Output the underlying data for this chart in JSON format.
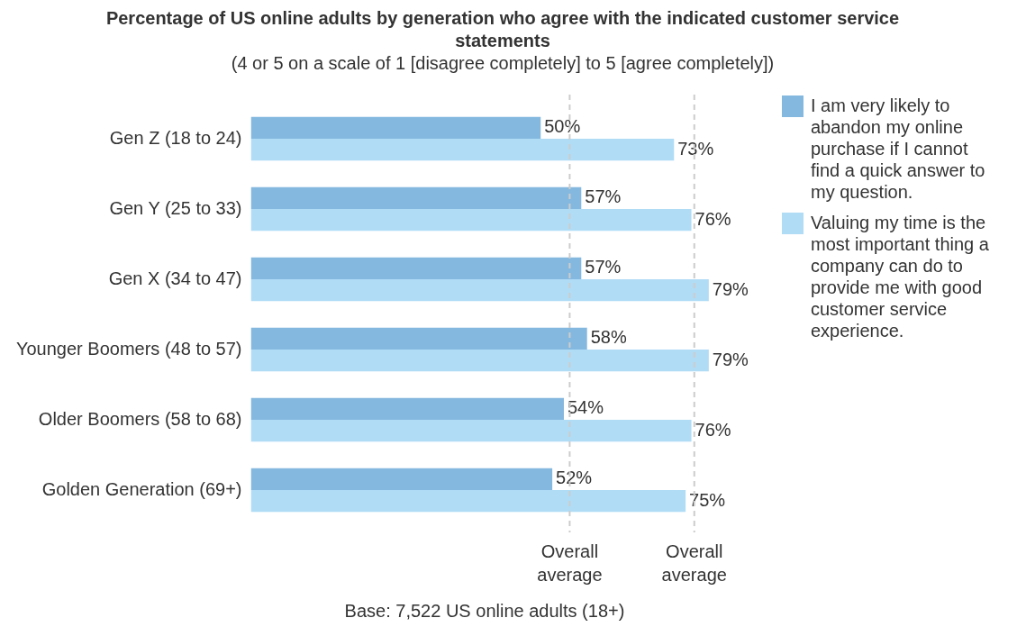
{
  "chart_data": {
    "type": "bar",
    "orientation": "horizontal",
    "title": "Percentage of US online adults by generation who agree with the indicated customer service statements",
    "subtitle": "(4 or 5 on a scale of 1 [disagree completely] to 5 [agree completely])",
    "categories": [
      "Gen Z (18 to 24)",
      "Gen Y (25 to 33)",
      "Gen X (34 to 47)",
      "Younger Boomers (48 to 57)",
      "Older Boomers (58 to 68)",
      "Golden Generation (69+)"
    ],
    "series": [
      {
        "name": "I am very likely to abandon my online purchase if I cannot find a quick answer to my question.",
        "color": "#85b8df",
        "values": [
          50,
          57,
          57,
          58,
          54,
          52
        ],
        "value_labels": [
          "50%",
          "57%",
          "57%",
          "58%",
          "54%",
          "52%"
        ]
      },
      {
        "name": "Valuing my time is the most important thing a company can do to provide me with good customer service experience.",
        "color": "#b0dcf6",
        "values": [
          73,
          76,
          79,
          79,
          76,
          75
        ],
        "value_labels": [
          "73%",
          "76%",
          "79%",
          "79%",
          "76%",
          "75%"
        ]
      }
    ],
    "ref_lines": [
      {
        "axis": "x",
        "value": 55,
        "label": "Overall average",
        "color": "#cccccc",
        "line_style": "dashed"
      },
      {
        "axis": "x",
        "value": 76.5,
        "label": "Overall average",
        "color": "#cccccc",
        "line_style": "dashed"
      }
    ],
    "tick_labels": "y",
    "legend": "right",
    "annotations": [
      "Base: 7,522 US online adults (18+)"
    ]
  }
}
